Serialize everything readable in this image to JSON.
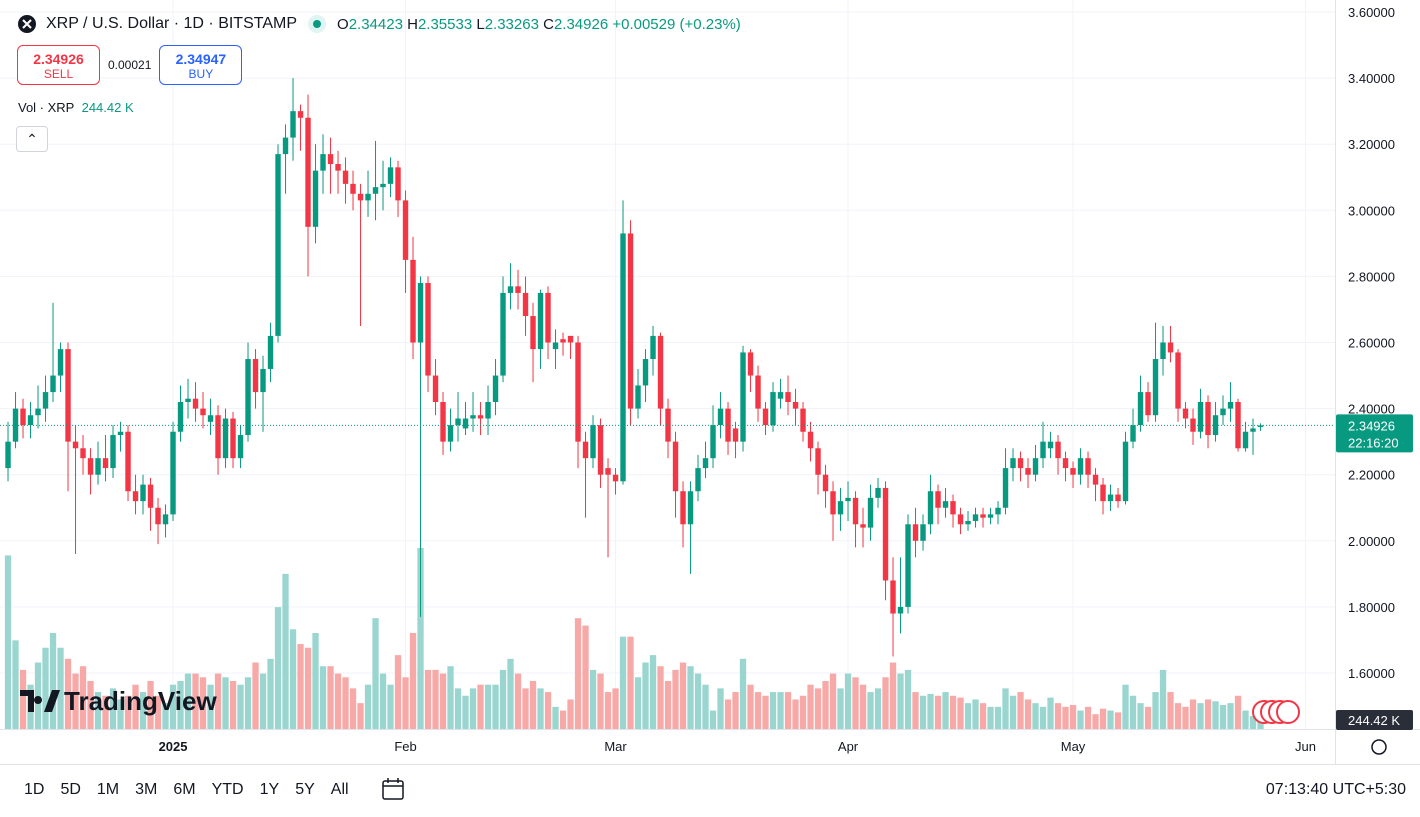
{
  "header": {
    "symbol": "XRP / U.S. Dollar · 1D · BITSTAMP",
    "ohlc": [
      {
        "key": "O",
        "value": "2.34423"
      },
      {
        "key": "H",
        "value": "2.35533"
      },
      {
        "key": "L",
        "value": "2.33263"
      },
      {
        "key": "C",
        "value": "2.34926"
      }
    ],
    "change": "+0.00529 (+0.23%)",
    "sell": {
      "price": "2.34926",
      "label": "SELL"
    },
    "spread": "0.00021",
    "buy": {
      "price": "2.34947",
      "label": "BUY"
    },
    "volume_legend": "Vol · XRP"
  },
  "chart_data": {
    "type": "candlestick",
    "up_color": "#089981",
    "down_color": "#f23645",
    "up_volume_color": "#9ad6cf",
    "down_volume_color": "#f7a9a7",
    "grid": true,
    "ylim": [
      1.4306,
      3.6363
    ],
    "xlim": [
      -1.07,
      176.93
    ],
    "yticks": [
      {
        "value": 3.6,
        "label": "3.60000"
      },
      {
        "value": 3.4,
        "label": "3.40000"
      },
      {
        "value": 3.2,
        "label": "3.20000"
      },
      {
        "value": 3.0,
        "label": "3.00000"
      },
      {
        "value": 2.8,
        "label": "2.80000"
      },
      {
        "value": 2.6,
        "label": "2.60000"
      },
      {
        "value": 2.4,
        "label": "2.40000"
      },
      {
        "value": 2.2,
        "label": "2.20000"
      },
      {
        "value": 2.0,
        "label": "2.00000"
      },
      {
        "value": 1.8,
        "label": "1.80000"
      },
      {
        "value": 1.6,
        "label": "1.60000"
      }
    ],
    "xticks": [
      {
        "value": 22,
        "label": "2025"
      },
      {
        "value": 53,
        "label": "Feb"
      },
      {
        "value": 81,
        "label": "Mar"
      },
      {
        "value": 112,
        "label": "Apr"
      },
      {
        "value": 142,
        "label": "May"
      },
      {
        "value": 173,
        "label": "Jun"
      }
    ],
    "candles": [
      [
        2.22,
        2.36,
        2.18,
        2.3
      ],
      [
        2.3,
        2.45,
        2.28,
        2.4
      ],
      [
        2.4,
        2.43,
        2.31,
        2.35
      ],
      [
        2.35,
        2.42,
        2.31,
        2.38
      ],
      [
        2.38,
        2.47,
        2.34,
        2.4
      ],
      [
        2.4,
        2.5,
        2.36,
        2.45
      ],
      [
        2.45,
        2.72,
        2.42,
        2.5
      ],
      [
        2.5,
        2.6,
        2.45,
        2.58
      ],
      [
        2.58,
        2.6,
        2.15,
        2.3
      ],
      [
        2.3,
        2.35,
        1.96,
        2.28
      ],
      [
        2.28,
        2.32,
        2.2,
        2.25
      ],
      [
        2.25,
        2.28,
        2.14,
        2.2
      ],
      [
        2.2,
        2.3,
        2.17,
        2.25
      ],
      [
        2.25,
        2.32,
        2.18,
        2.22
      ],
      [
        2.22,
        2.35,
        2.19,
        2.32
      ],
      [
        2.32,
        2.36,
        2.27,
        2.33
      ],
      [
        2.33,
        2.35,
        2.12,
        2.15
      ],
      [
        2.15,
        2.2,
        2.08,
        2.12
      ],
      [
        2.12,
        2.2,
        2.08,
        2.17
      ],
      [
        2.17,
        2.19,
        2.03,
        2.1
      ],
      [
        2.1,
        2.13,
        1.99,
        2.05
      ],
      [
        2.05,
        2.11,
        2.01,
        2.08
      ],
      [
        2.08,
        2.36,
        2.06,
        2.33
      ],
      [
        2.33,
        2.47,
        2.3,
        2.42
      ],
      [
        2.42,
        2.49,
        2.37,
        2.43
      ],
      [
        2.43,
        2.48,
        2.36,
        2.4
      ],
      [
        2.4,
        2.45,
        2.34,
        2.38
      ],
      [
        2.36,
        2.43,
        2.32,
        2.38
      ],
      [
        2.38,
        2.41,
        2.2,
        2.25
      ],
      [
        2.25,
        2.4,
        2.22,
        2.37
      ],
      [
        2.37,
        2.39,
        2.22,
        2.25
      ],
      [
        2.25,
        2.35,
        2.22,
        2.32
      ],
      [
        2.32,
        2.6,
        2.3,
        2.55
      ],
      [
        2.55,
        2.58,
        2.4,
        2.45
      ],
      [
        2.45,
        2.56,
        2.33,
        2.52
      ],
      [
        2.52,
        2.66,
        2.48,
        2.62
      ],
      [
        2.62,
        3.2,
        2.6,
        3.17
      ],
      [
        3.17,
        3.26,
        3.05,
        3.22
      ],
      [
        3.22,
        3.4,
        3.15,
        3.3
      ],
      [
        3.3,
        3.32,
        3.18,
        3.28
      ],
      [
        3.28,
        3.35,
        2.8,
        2.95
      ],
      [
        2.95,
        3.2,
        2.9,
        3.12
      ],
      [
        3.12,
        3.23,
        3.05,
        3.17
      ],
      [
        3.17,
        3.22,
        3.05,
        3.14
      ],
      [
        3.14,
        3.18,
        3.05,
        3.12
      ],
      [
        3.12,
        3.16,
        3.02,
        3.08
      ],
      [
        3.08,
        3.12,
        3.0,
        3.05
      ],
      [
        3.05,
        3.08,
        2.65,
        3.03
      ],
      [
        3.03,
        3.12,
        2.98,
        3.05
      ],
      [
        3.05,
        3.21,
        2.97,
        3.07
      ],
      [
        3.07,
        3.15,
        3.0,
        3.08
      ],
      [
        3.08,
        3.16,
        3.04,
        3.13
      ],
      [
        3.13,
        3.15,
        2.98,
        3.03
      ],
      [
        3.03,
        3.06,
        2.75,
        2.85
      ],
      [
        2.85,
        2.92,
        2.55,
        2.6
      ],
      [
        2.6,
        2.8,
        1.77,
        2.78
      ],
      [
        2.78,
        2.8,
        2.45,
        2.5
      ],
      [
        2.5,
        2.55,
        2.38,
        2.42
      ],
      [
        2.42,
        2.45,
        2.26,
        2.3
      ],
      [
        2.3,
        2.4,
        2.27,
        2.35
      ],
      [
        2.35,
        2.45,
        2.3,
        2.37
      ],
      [
        2.34,
        2.42,
        2.32,
        2.37
      ],
      [
        2.37,
        2.45,
        2.33,
        2.38
      ],
      [
        2.38,
        2.42,
        2.32,
        2.37
      ],
      [
        2.37,
        2.47,
        2.32,
        2.42
      ],
      [
        2.42,
        2.55,
        2.38,
        2.5
      ],
      [
        2.5,
        2.8,
        2.48,
        2.75
      ],
      [
        2.75,
        2.84,
        2.7,
        2.77
      ],
      [
        2.77,
        2.82,
        2.7,
        2.75
      ],
      [
        2.75,
        2.8,
        2.62,
        2.68
      ],
      [
        2.68,
        2.72,
        2.48,
        2.58
      ],
      [
        2.58,
        2.76,
        2.52,
        2.75
      ],
      [
        2.75,
        2.77,
        2.55,
        2.6
      ],
      [
        2.58,
        2.64,
        2.52,
        2.6
      ],
      [
        2.61,
        2.63,
        2.56,
        2.6
      ],
      [
        2.62,
        2.62,
        2.55,
        2.6
      ],
      [
        2.6,
        2.62,
        2.22,
        2.3
      ],
      [
        2.3,
        2.33,
        2.07,
        2.25
      ],
      [
        2.25,
        2.38,
        2.22,
        2.35
      ],
      [
        2.35,
        2.37,
        2.16,
        2.2
      ],
      [
        2.22,
        2.25,
        1.95,
        2.2
      ],
      [
        2.2,
        2.22,
        2.14,
        2.18
      ],
      [
        2.18,
        3.03,
        2.17,
        2.93
      ],
      [
        2.93,
        2.97,
        2.35,
        2.4
      ],
      [
        2.4,
        2.52,
        2.37,
        2.47
      ],
      [
        2.47,
        2.58,
        2.42,
        2.55
      ],
      [
        2.55,
        2.65,
        2.5,
        2.62
      ],
      [
        2.62,
        2.63,
        2.35,
        2.4
      ],
      [
        2.4,
        2.43,
        2.25,
        2.3
      ],
      [
        2.3,
        2.33,
        2.07,
        2.15
      ],
      [
        2.15,
        2.18,
        1.98,
        2.05
      ],
      [
        2.05,
        2.18,
        1.9,
        2.15
      ],
      [
        2.15,
        2.26,
        2.12,
        2.22
      ],
      [
        2.22,
        2.3,
        2.19,
        2.25
      ],
      [
        2.25,
        2.41,
        2.22,
        2.35
      ],
      [
        2.35,
        2.45,
        2.31,
        2.4
      ],
      [
        2.4,
        2.42,
        2.26,
        2.3
      ],
      [
        2.34,
        2.36,
        2.25,
        2.3
      ],
      [
        2.3,
        2.59,
        2.27,
        2.57
      ],
      [
        2.57,
        2.58,
        2.45,
        2.5
      ],
      [
        2.5,
        2.53,
        2.36,
        2.4
      ],
      [
        2.4,
        2.42,
        2.32,
        2.35
      ],
      [
        2.35,
        2.48,
        2.33,
        2.45
      ],
      [
        2.43,
        2.49,
        2.4,
        2.45
      ],
      [
        2.45,
        2.5,
        2.38,
        2.42
      ],
      [
        2.42,
        2.46,
        2.35,
        2.4
      ],
      [
        2.4,
        2.42,
        2.3,
        2.33
      ],
      [
        2.33,
        2.36,
        2.24,
        2.28
      ],
      [
        2.28,
        2.3,
        2.14,
        2.2
      ],
      [
        2.2,
        2.23,
        2.1,
        2.15
      ],
      [
        2.15,
        2.18,
        2.0,
        2.08
      ],
      [
        2.08,
        2.16,
        2.03,
        2.12
      ],
      [
        2.12,
        2.18,
        2.06,
        2.13
      ],
      [
        2.13,
        2.15,
        1.98,
        2.05
      ],
      [
        2.05,
        2.1,
        1.98,
        2.04
      ],
      [
        2.04,
        2.17,
        2.0,
        2.13
      ],
      [
        2.13,
        2.19,
        2.1,
        2.16
      ],
      [
        2.16,
        2.18,
        1.82,
        1.88
      ],
      [
        1.88,
        1.95,
        1.65,
        1.78
      ],
      [
        1.78,
        1.95,
        1.72,
        1.8
      ],
      [
        1.8,
        2.08,
        1.78,
        2.05
      ],
      [
        2.05,
        2.1,
        1.95,
        2.0
      ],
      [
        2.0,
        2.08,
        1.97,
        2.05
      ],
      [
        2.05,
        2.2,
        2.02,
        2.15
      ],
      [
        2.15,
        2.17,
        2.05,
        2.1
      ],
      [
        2.1,
        2.16,
        2.07,
        2.12
      ],
      [
        2.12,
        2.14,
        2.04,
        2.08
      ],
      [
        2.08,
        2.1,
        2.02,
        2.05
      ],
      [
        2.05,
        2.09,
        2.03,
        2.06
      ],
      [
        2.06,
        2.1,
        2.04,
        2.08
      ],
      [
        2.08,
        2.1,
        2.04,
        2.07
      ],
      [
        2.07,
        2.1,
        2.05,
        2.08
      ],
      [
        2.08,
        2.12,
        2.05,
        2.1
      ],
      [
        2.1,
        2.28,
        2.08,
        2.22
      ],
      [
        2.22,
        2.28,
        2.18,
        2.25
      ],
      [
        2.25,
        2.27,
        2.18,
        2.22
      ],
      [
        2.22,
        2.25,
        2.16,
        2.2
      ],
      [
        2.2,
        2.29,
        2.18,
        2.25
      ],
      [
        2.25,
        2.36,
        2.22,
        2.3
      ],
      [
        2.28,
        2.33,
        2.25,
        2.3
      ],
      [
        2.3,
        2.32,
        2.2,
        2.25
      ],
      [
        2.25,
        2.27,
        2.18,
        2.22
      ],
      [
        2.22,
        2.24,
        2.16,
        2.2
      ],
      [
        2.2,
        2.28,
        2.17,
        2.25
      ],
      [
        2.25,
        2.27,
        2.16,
        2.2
      ],
      [
        2.2,
        2.22,
        2.12,
        2.17
      ],
      [
        2.17,
        2.19,
        2.08,
        2.12
      ],
      [
        2.12,
        2.17,
        2.09,
        2.14
      ],
      [
        2.14,
        2.16,
        2.1,
        2.12
      ],
      [
        2.12,
        2.33,
        2.11,
        2.3
      ],
      [
        2.3,
        2.4,
        2.28,
        2.35
      ],
      [
        2.35,
        2.5,
        2.33,
        2.45
      ],
      [
        2.45,
        2.48,
        2.36,
        2.38
      ],
      [
        2.38,
        2.66,
        2.36,
        2.55
      ],
      [
        2.55,
        2.65,
        2.5,
        2.6
      ],
      [
        2.6,
        2.65,
        2.54,
        2.57
      ],
      [
        2.57,
        2.58,
        2.36,
        2.4
      ],
      [
        2.4,
        2.42,
        2.34,
        2.37
      ],
      [
        2.37,
        2.4,
        2.29,
        2.33
      ],
      [
        2.33,
        2.46,
        2.31,
        2.42
      ],
      [
        2.42,
        2.44,
        2.28,
        2.32
      ],
      [
        2.32,
        2.42,
        2.3,
        2.38
      ],
      [
        2.38,
        2.44,
        2.35,
        2.4
      ],
      [
        2.4,
        2.48,
        2.36,
        2.42
      ],
      [
        2.42,
        2.43,
        2.27,
        2.28
      ],
      [
        2.28,
        2.36,
        2.27,
        2.33
      ],
      [
        2.33,
        2.37,
        2.26,
        2.34
      ],
      [
        2.34423,
        2.35533,
        2.33263,
        2.34926
      ]
    ],
    "volumes": [
      4700,
      2400,
      1600,
      1200,
      1800,
      2200,
      2600,
      2200,
      1900,
      1500,
      1700,
      1300,
      1000,
      900,
      1100,
      800,
      900,
      1200,
      1000,
      1300,
      900,
      700,
      1200,
      1300,
      1500,
      1500,
      1400,
      1200,
      1500,
      1400,
      1300,
      1200,
      1400,
      1800,
      1500,
      1900,
      3300,
      4200,
      2700,
      2300,
      2200,
      2600,
      1700,
      1700,
      1500,
      1400,
      1100,
      700,
      1200,
      3000,
      1500,
      1200,
      2000,
      1400,
      2600,
      4900,
      1600,
      1600,
      1500,
      1700,
      1100,
      900,
      1100,
      1200,
      1200,
      1200,
      1600,
      1900,
      1500,
      1100,
      1300,
      1100,
      1000,
      600,
      500,
      800,
      3000,
      2800,
      1600,
      1500,
      1000,
      1100,
      2500,
      2500,
      1400,
      1800,
      2000,
      1700,
      1300,
      1600,
      1800,
      1700,
      1500,
      1200,
      500,
      1100,
      800,
      1000,
      1900,
      1200,
      1000,
      900,
      1000,
      1000,
      1000,
      800,
      900,
      1200,
      1100,
      1300,
      1500,
      1100,
      1500,
      1400,
      1200,
      1000,
      1100,
      1400,
      1800,
      1500,
      1600,
      1000,
      900,
      950,
      900,
      1000,
      900,
      850,
      700,
      800,
      700,
      600,
      600,
      1100,
      900,
      1000,
      800,
      700,
      600,
      850,
      700,
      600,
      650,
      500,
      600,
      400,
      550,
      500,
      450,
      1200,
      900,
      700,
      600,
      1000,
      1600,
      1000,
      700,
      600,
      800,
      700,
      800,
      750,
      650,
      700,
      900,
      500,
      350,
      244.42
    ],
    "last_price_label": "2.34926",
    "countdown": "22:16:20",
    "last_volume_label": "244.42 K"
  },
  "watermark": "TradingView",
  "range_buttons": [
    "1D",
    "5D",
    "1M",
    "3M",
    "6M",
    "YTD",
    "1Y",
    "5Y",
    "All"
  ],
  "clock": "07:13:40 UTC+5:30"
}
